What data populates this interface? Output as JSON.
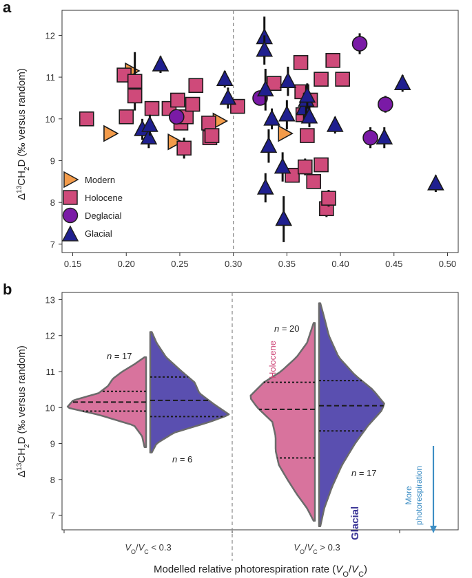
{
  "figure": {
    "panel_a_label": "a",
    "panel_b_label": "b"
  },
  "colors": {
    "modern": "#f39b4a",
    "holocene": "#cf4a7a",
    "deglacial": "#7a1aa6",
    "glacial": "#1f1f8f",
    "holocene_violin": "#d8739d",
    "glacial_violin": "#5a4fb0",
    "photoresp_arrow": "#3d8ec4"
  },
  "chart_data": [
    {
      "type": "scatter",
      "panel": "a",
      "title": "",
      "xlabel": "",
      "ylabel_main": "Δ",
      "ylabel_sup": "13",
      "ylabel_mid": "CH",
      "ylabel_sub": "2",
      "ylabel_end": "D (‰ versus random)",
      "xlim": [
        0.14,
        0.51
      ],
      "ylim": [
        6.8,
        12.6
      ],
      "xticks": [
        "0.15",
        "0.20",
        "0.25",
        "0.30",
        "0.35",
        "0.40",
        "0.45",
        "0.50"
      ],
      "xtick_values": [
        0.15,
        0.2,
        0.25,
        0.3,
        0.35,
        0.4,
        0.45,
        0.5
      ],
      "yticks": [
        "7",
        "8",
        "9",
        "10",
        "11",
        "12"
      ],
      "ytick_values": [
        7,
        8,
        9,
        10,
        11,
        12
      ],
      "threshold_x": 0.3,
      "legend_position": "bottom-left",
      "series": [
        {
          "name": "Modern",
          "marker": "triangle-right",
          "points": [
            {
              "x": 0.185,
              "y": 9.65,
              "err": 0.0
            },
            {
              "x": 0.205,
              "y": 11.15,
              "err": 0.0
            },
            {
              "x": 0.245,
              "y": 9.45,
              "err": 0.0
            },
            {
              "x": 0.287,
              "y": 9.95,
              "err": 0.0
            },
            {
              "x": 0.348,
              "y": 9.65,
              "err": 0.0
            }
          ]
        },
        {
          "name": "Holocene",
          "marker": "square",
          "points": [
            {
              "x": 0.163,
              "y": 10.0,
              "err": 0.15
            },
            {
              "x": 0.198,
              "y": 11.05,
              "err": 0.15
            },
            {
              "x": 0.2,
              "y": 10.05,
              "err": 0.15
            },
            {
              "x": 0.208,
              "y": 10.9,
              "err": 0.7
            },
            {
              "x": 0.208,
              "y": 10.55,
              "err": 0.15
            },
            {
              "x": 0.224,
              "y": 10.25,
              "err": 0.15
            },
            {
              "x": 0.24,
              "y": 10.25,
              "err": 0.15
            },
            {
              "x": 0.248,
              "y": 10.45,
              "err": 0.15
            },
            {
              "x": 0.251,
              "y": 9.9,
              "err": 0.15
            },
            {
              "x": 0.254,
              "y": 9.3,
              "err": 0.25
            },
            {
              "x": 0.256,
              "y": 10.05,
              "err": 0.15
            },
            {
              "x": 0.262,
              "y": 10.35,
              "err": 0.15
            },
            {
              "x": 0.265,
              "y": 10.8,
              "err": 0.15
            },
            {
              "x": 0.277,
              "y": 9.9,
              "err": 0.15
            },
            {
              "x": 0.278,
              "y": 9.55,
              "err": 0.15
            },
            {
              "x": 0.28,
              "y": 9.6,
              "err": 0.15
            },
            {
              "x": 0.304,
              "y": 10.3,
              "err": 0.15
            },
            {
              "x": 0.338,
              "y": 10.85,
              "err": 0.15
            },
            {
              "x": 0.355,
              "y": 8.65,
              "err": 0.15
            },
            {
              "x": 0.363,
              "y": 11.35,
              "err": 0.15
            },
            {
              "x": 0.364,
              "y": 10.65,
              "err": 0.15
            },
            {
              "x": 0.365,
              "y": 10.1,
              "err": 0.2
            },
            {
              "x": 0.367,
              "y": 8.85,
              "err": 0.2
            },
            {
              "x": 0.369,
              "y": 9.6,
              "err": 0.15
            },
            {
              "x": 0.372,
              "y": 10.45,
              "err": 0.15
            },
            {
              "x": 0.375,
              "y": 8.5,
              "err": 0.15
            },
            {
              "x": 0.382,
              "y": 10.95,
              "err": 0.15
            },
            {
              "x": 0.382,
              "y": 8.9,
              "err": 0.15
            },
            {
              "x": 0.387,
              "y": 7.85,
              "err": 0.2
            },
            {
              "x": 0.389,
              "y": 8.1,
              "err": 0.2
            },
            {
              "x": 0.393,
              "y": 11.4,
              "err": 0.15
            },
            {
              "x": 0.402,
              "y": 10.95,
              "err": 0.15
            }
          ]
        },
        {
          "name": "Deglacial",
          "marker": "circle",
          "points": [
            {
              "x": 0.247,
              "y": 10.05,
              "err": 0.15
            },
            {
              "x": 0.325,
              "y": 10.5,
              "err": 0.15
            },
            {
              "x": 0.418,
              "y": 11.8,
              "err": 0.25
            },
            {
              "x": 0.428,
              "y": 9.55,
              "err": 0.25
            },
            {
              "x": 0.442,
              "y": 10.35,
              "err": 0.2
            }
          ]
        },
        {
          "name": "Glacial",
          "marker": "triangle-up",
          "points": [
            {
              "x": 0.215,
              "y": 9.75,
              "err": 0.25
            },
            {
              "x": 0.221,
              "y": 9.55,
              "err": 0.25
            },
            {
              "x": 0.222,
              "y": 9.85,
              "err": 0.25
            },
            {
              "x": 0.232,
              "y": 11.3,
              "err": 0.2
            },
            {
              "x": 0.292,
              "y": 10.95,
              "err": 0.2
            },
            {
              "x": 0.295,
              "y": 10.5,
              "err": 0.25
            },
            {
              "x": 0.329,
              "y": 11.95,
              "err": 0.5
            },
            {
              "x": 0.329,
              "y": 11.65,
              "err": 0.35
            },
            {
              "x": 0.33,
              "y": 10.7,
              "err": 0.5
            },
            {
              "x": 0.33,
              "y": 8.35,
              "err": 0.35
            },
            {
              "x": 0.333,
              "y": 9.35,
              "err": 0.4
            },
            {
              "x": 0.336,
              "y": 10.0,
              "err": 0.25
            },
            {
              "x": 0.346,
              "y": 8.85,
              "err": 0.35
            },
            {
              "x": 0.347,
              "y": 7.6,
              "err": 0.55
            },
            {
              "x": 0.35,
              "y": 10.1,
              "err": 0.35
            },
            {
              "x": 0.351,
              "y": 10.9,
              "err": 0.35
            },
            {
              "x": 0.366,
              "y": 10.25,
              "err": 0.35
            },
            {
              "x": 0.368,
              "y": 10.45,
              "err": 0.35
            },
            {
              "x": 0.369,
              "y": 10.55,
              "err": 0.3
            },
            {
              "x": 0.371,
              "y": 10.05,
              "err": 0.25
            },
            {
              "x": 0.395,
              "y": 9.85,
              "err": 0.2
            },
            {
              "x": 0.441,
              "y": 9.55,
              "err": 0.25
            },
            {
              "x": 0.458,
              "y": 10.85,
              "err": 0.2
            },
            {
              "x": 0.489,
              "y": 8.45,
              "err": 0.2
            }
          ]
        }
      ]
    },
    {
      "type": "violin",
      "panel": "b",
      "ylabel_main": "Δ",
      "ylabel_sup": "13",
      "ylabel_mid": "CH",
      "ylabel_sub": "2",
      "ylabel_end": "D (‰ versus random)",
      "xlabel_main": "Modelled relative photorespiration rate (",
      "xlabel_v1": "V",
      "xlabel_s1": "O",
      "xlabel_slash": "/",
      "xlabel_v2": "V",
      "xlabel_s2": "C",
      "xlabel_end": ")",
      "ylim": [
        6.6,
        13.2
      ],
      "yticks": [
        "7",
        "8",
        "9",
        "10",
        "11",
        "12",
        "13"
      ],
      "ytick_values": [
        7,
        8,
        9,
        10,
        11,
        12,
        13
      ],
      "groups": [
        {
          "category_v1": "V",
          "category_s1": "O",
          "category_slash": "/",
          "category_v2": "V",
          "category_s2": "C",
          "category_rest": " < 0.3",
          "left": {
            "name": "Holocene",
            "n_label": "n = 17",
            "min": 8.9,
            "max": 11.4,
            "quartiles": [
              9.9,
              10.15,
              10.45
            ],
            "profile": [
              [
                8.9,
                0.02
              ],
              [
                9.2,
                0.05
              ],
              [
                9.5,
                0.15
              ],
              [
                9.8,
                0.6
              ],
              [
                10.0,
                1.0
              ],
              [
                10.2,
                0.92
              ],
              [
                10.4,
                0.6
              ],
              [
                10.6,
                0.48
              ],
              [
                10.8,
                0.42
              ],
              [
                11.0,
                0.3
              ],
              [
                11.2,
                0.15
              ],
              [
                11.4,
                0.02
              ]
            ]
          },
          "right": {
            "name": "Glacial",
            "n_label": "n = 6",
            "min": 8.75,
            "max": 12.1,
            "quartiles": [
              9.75,
              10.2,
              10.85
            ],
            "profile": [
              [
                8.75,
                0.02
              ],
              [
                9.0,
                0.08
              ],
              [
                9.3,
                0.3
              ],
              [
                9.6,
                0.75
              ],
              [
                9.8,
                1.0
              ],
              [
                10.1,
                0.8
              ],
              [
                10.4,
                0.62
              ],
              [
                10.7,
                0.56
              ],
              [
                11.0,
                0.4
              ],
              [
                11.4,
                0.2
              ],
              [
                11.8,
                0.08
              ],
              [
                12.1,
                0.02
              ]
            ]
          }
        },
        {
          "category_v1": "V",
          "category_s1": "O",
          "category_slash": "/",
          "category_v2": "V",
          "category_s2": "C",
          "category_rest": " > 0.3",
          "left": {
            "name": "Holocene",
            "n_label": "n = 20",
            "min": 6.85,
            "max": 12.35,
            "quartiles": [
              8.6,
              9.95,
              10.7
            ],
            "profile": [
              [
                6.85,
                0.02
              ],
              [
                7.2,
                0.12
              ],
              [
                7.6,
                0.28
              ],
              [
                8.0,
                0.42
              ],
              [
                8.4,
                0.55
              ],
              [
                8.8,
                0.6
              ],
              [
                9.2,
                0.6
              ],
              [
                9.6,
                0.65
              ],
              [
                10.0,
                0.88
              ],
              [
                10.3,
                1.0
              ],
              [
                10.7,
                0.78
              ],
              [
                11.0,
                0.52
              ],
              [
                11.4,
                0.28
              ],
              [
                11.8,
                0.12
              ],
              [
                12.35,
                0.02
              ]
            ]
          },
          "right": {
            "name": "Glacial",
            "n_label": "n = 17",
            "min": 6.7,
            "max": 12.9,
            "quartiles": [
              9.35,
              10.05,
              10.75
            ],
            "profile": [
              [
                6.7,
                0.02
              ],
              [
                7.2,
                0.08
              ],
              [
                7.8,
                0.2
              ],
              [
                8.4,
                0.35
              ],
              [
                9.0,
                0.55
              ],
              [
                9.5,
                0.75
              ],
              [
                9.9,
                0.95
              ],
              [
                10.1,
                1.0
              ],
              [
                10.5,
                0.82
              ],
              [
                10.9,
                0.55
              ],
              [
                11.4,
                0.3
              ],
              [
                12.0,
                0.15
              ],
              [
                12.5,
                0.08
              ],
              [
                12.9,
                0.02
              ]
            ]
          }
        }
      ],
      "annotation": "More photorespiration",
      "annotation_line1": "More",
      "annotation_line2": "photorespiration"
    }
  ]
}
